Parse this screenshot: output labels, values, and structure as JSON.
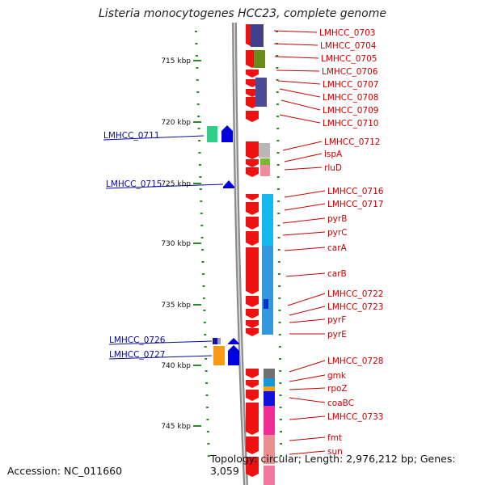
{
  "title": "Listeria monocytogenes HCC23, complete genome",
  "footer": {
    "accession": "Accession: NC_011660",
    "topology": "Topology: circular; Length: 2,976,212 bp; Genes: 3,059"
  },
  "scale": {
    "ticks": [
      {
        "label": "715 kbp"
      },
      {
        "label": "720 kbp"
      },
      {
        "label": "725 kbp"
      },
      {
        "label": "730 kbp"
      },
      {
        "label": "735 kbp"
      },
      {
        "label": "740 kbp"
      },
      {
        "label": "745 kbp"
      }
    ]
  },
  "colors": {
    "forward_strand_genes": "#ee1111",
    "reverse_strand_genes": "#0000dd",
    "backbone": "#8c8c8c",
    "scale_dots": "#2a8a2a",
    "right_labels": "#cc0000",
    "left_labels": "#0a0a9a"
  },
  "right_labels": [
    "LMHCC_0703",
    "LMHCC_0704",
    "LMHCC_0705",
    "LMHCC_0706",
    "LMHCC_0707",
    "LMHCC_0708",
    "LMHCC_0709",
    "LMHCC_0710",
    "LMHCC_0712",
    "lspA",
    "rluD",
    "LMHCC_0716",
    "LMHCC_0717",
    "pyrB",
    "pyrC",
    "carA",
    "carB",
    "LMHCC_0722",
    "LMHCC_0723",
    "pyrF",
    "pyrE",
    "LMHCC_0728",
    "gmk",
    "rpoZ",
    "coaBC",
    "LMHCC_0733",
    "fmt",
    "sun"
  ],
  "left_labels": [
    "LMHCC_0711",
    "LMHCC_0715",
    "LMHCC_0726",
    "LMHCC_0727"
  ]
}
